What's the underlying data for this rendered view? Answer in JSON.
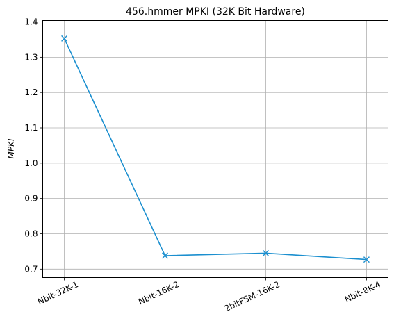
{
  "chart_data": {
    "type": "line",
    "title": "456.hmmer MPKI (32K Bit Hardware)",
    "xlabel": "",
    "ylabel": "MPKI",
    "categories": [
      "Nbit-32K-1",
      "Nbit-16K-2",
      "2bitFSM-16K-2",
      "Nbit-8K-4"
    ],
    "series": [
      {
        "values": [
          1.353,
          0.738,
          0.745,
          0.727
        ],
        "color": "#1b8fcf",
        "marker": "x"
      }
    ],
    "yticks": [
      "0.7",
      "0.8",
      "0.9",
      "1.0",
      "1.1",
      "1.2",
      "1.3",
      "1.4"
    ],
    "ylim": [
      0.676,
      1.404
    ],
    "grid": true,
    "legend": "none"
  }
}
